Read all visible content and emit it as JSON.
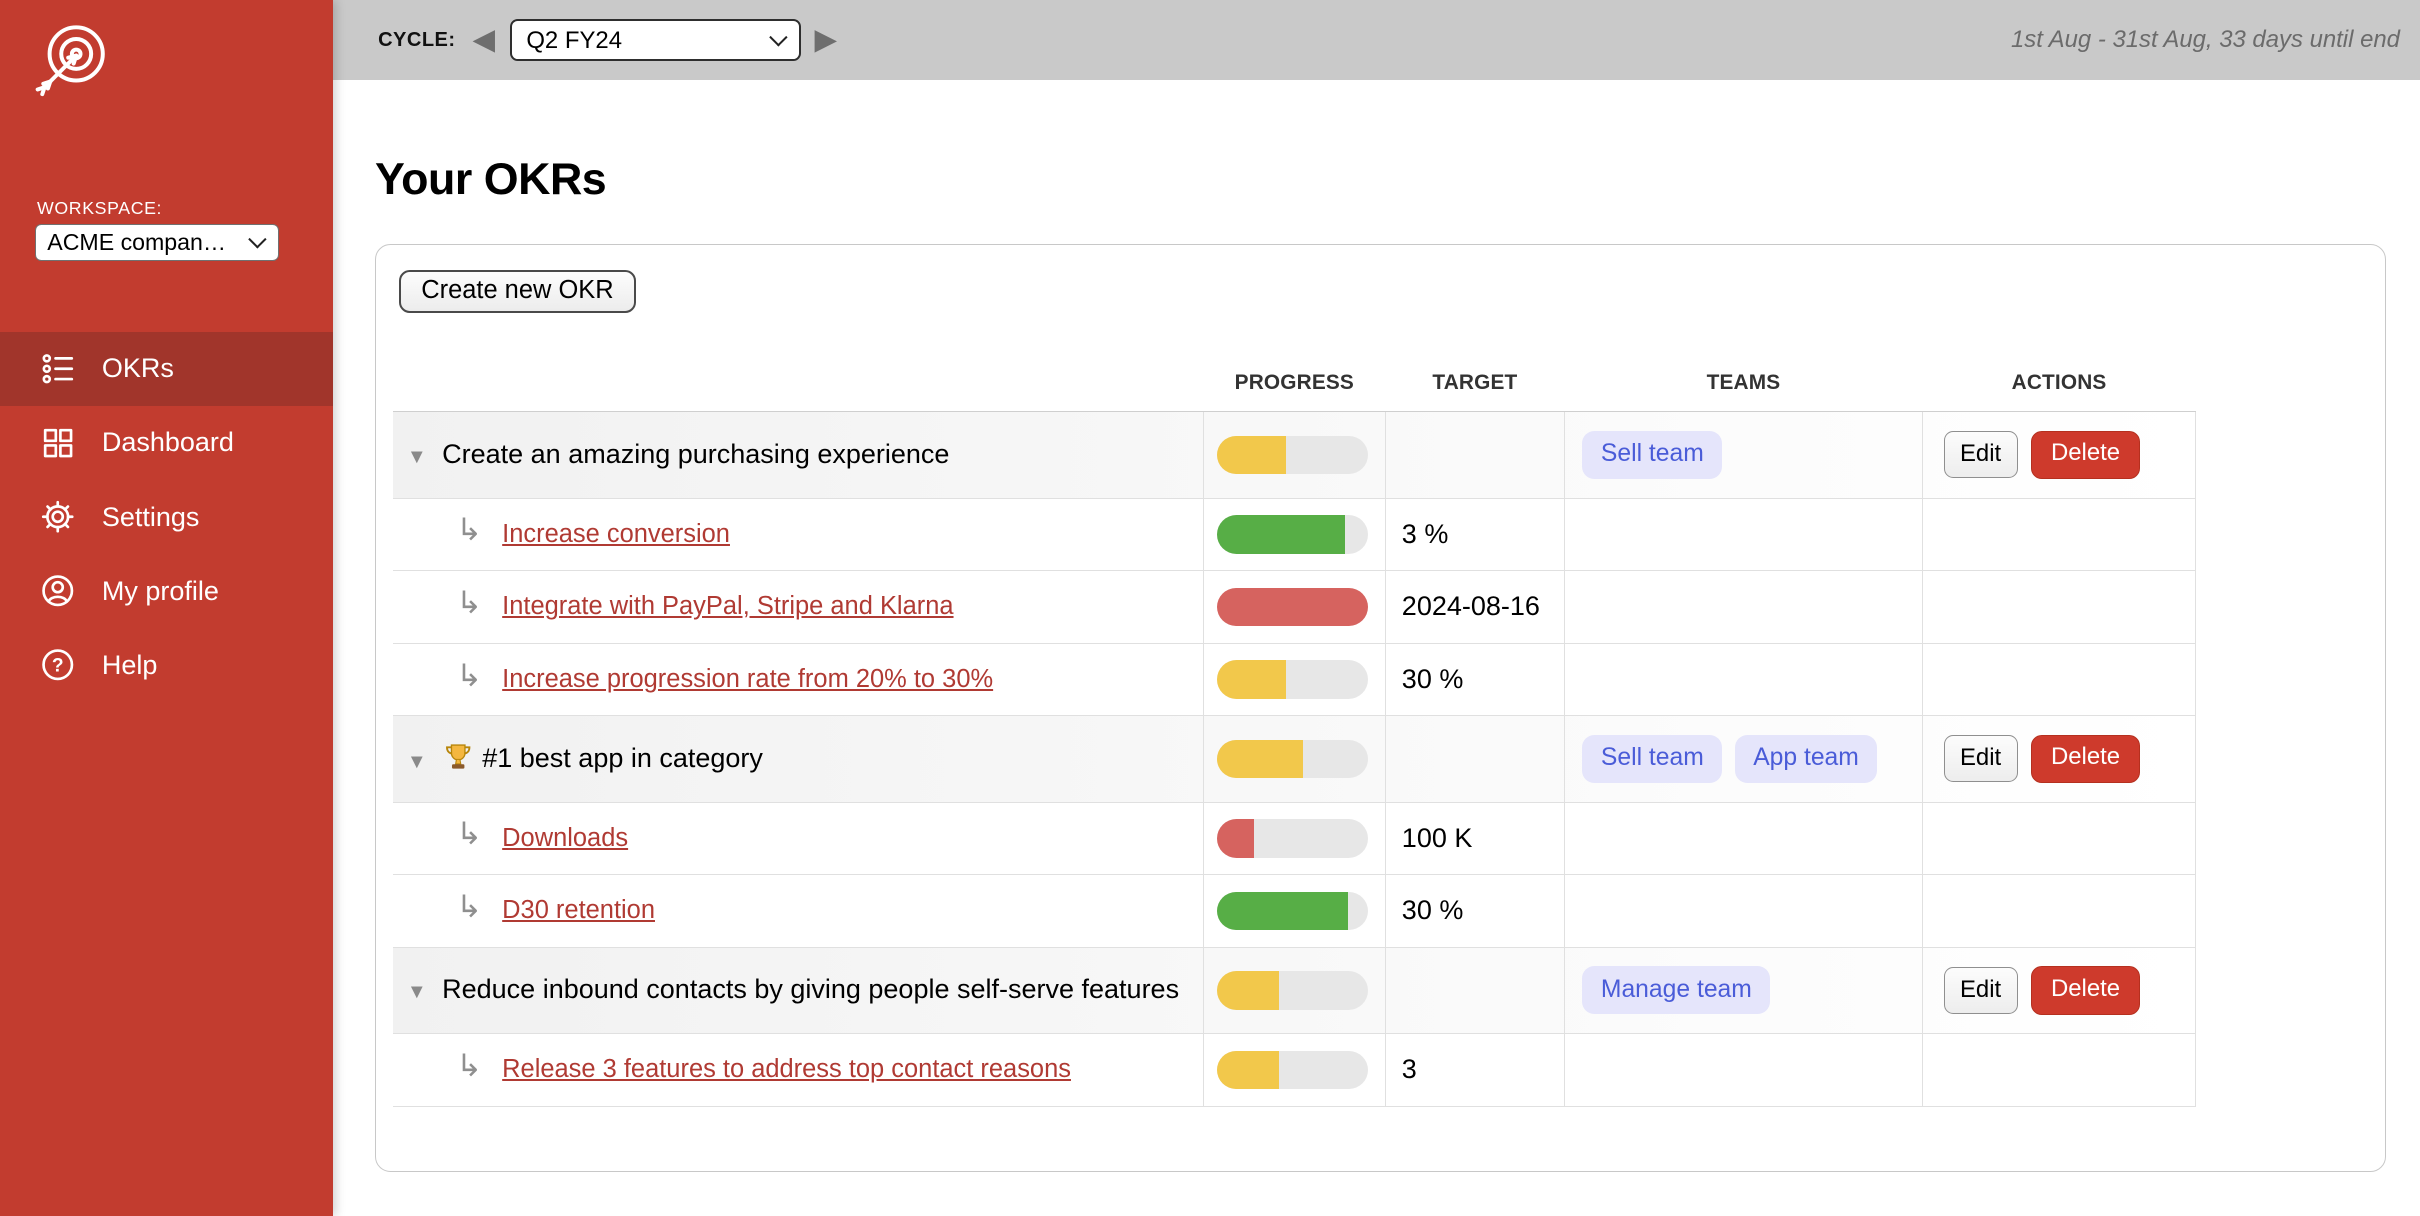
{
  "colors": {
    "sidebar_red": "#C23C2F",
    "sidebar_active": "#A1352B",
    "topbar_gray": "#C9C9C9",
    "link_red": "#B03A33",
    "badge_bg": "#E5E5FB",
    "badge_text": "#4A5CD8",
    "delete_red": "#CE3A2C",
    "progress_track": "#E7E7E7",
    "progress_yellow": "#F2C84B",
    "progress_green": "#57AE46",
    "progress_red": "#D6635F"
  },
  "topbar": {
    "cycle_label": "CYCLE:",
    "cycle_value": "Q2 FY24",
    "prev_icon": "◀",
    "next_icon": "▶",
    "period_info": "1st Aug - 31st Aug, 33 days until end"
  },
  "sidebar": {
    "workspace_label": "WORKSPACE:",
    "workspace_value": "ACME compan…",
    "items": [
      {
        "label": "OKRs",
        "icon": "okr-list-icon",
        "active": true
      },
      {
        "label": "Dashboard",
        "icon": "dashboard-grid-icon",
        "active": false
      },
      {
        "label": "Settings",
        "icon": "settings-gear-icon",
        "active": false
      },
      {
        "label": "My profile",
        "icon": "profile-user-icon",
        "active": false
      },
      {
        "label": "Help",
        "icon": "help-question-icon",
        "active": false
      }
    ]
  },
  "main": {
    "title": "Your OKRs",
    "create_button_label": "Create new OKR",
    "table": {
      "headers": [
        "PROGRESS",
        "TARGET",
        "TEAMS",
        "ACTIONS"
      ],
      "action_labels": {
        "edit": "Edit",
        "delete": "Delete"
      },
      "rows": [
        {
          "type": "objective",
          "title": "Create an amazing purchasing experience",
          "icon": "",
          "progress": {
            "percent": 46,
            "color": "yellow"
          },
          "target": "",
          "teams": [
            "Sell team"
          ]
        },
        {
          "type": "kr",
          "title": "Increase conversion",
          "progress": {
            "percent": 85,
            "color": "green"
          },
          "target": "3 %",
          "teams": []
        },
        {
          "type": "kr",
          "title": "Integrate with PayPal, Stripe and Klarna",
          "progress": {
            "percent": 100,
            "color": "red"
          },
          "target": "2024-08-16",
          "teams": []
        },
        {
          "type": "kr",
          "title": "Increase progression rate from 20% to 30%",
          "progress": {
            "percent": 46,
            "color": "yellow"
          },
          "target": "30 %",
          "teams": []
        },
        {
          "type": "objective",
          "title": "#1 best app in category",
          "icon": "trophy-icon",
          "progress": {
            "percent": 57,
            "color": "yellow"
          },
          "target": "",
          "teams": [
            "Sell team",
            "App team"
          ]
        },
        {
          "type": "kr",
          "title": "Downloads",
          "progress": {
            "percent": 25,
            "color": "red"
          },
          "target": "100 K",
          "teams": []
        },
        {
          "type": "kr",
          "title": "D30 retention",
          "progress": {
            "percent": 87,
            "color": "green"
          },
          "target": "30 %",
          "teams": []
        },
        {
          "type": "objective",
          "title": "Reduce inbound contacts by giving people self-serve features",
          "icon": "",
          "progress": {
            "percent": 41,
            "color": "yellow"
          },
          "target": "",
          "teams": [
            "Manage team"
          ]
        },
        {
          "type": "kr",
          "title": "Release 3 features to address top contact reasons",
          "progress": {
            "percent": 41,
            "color": "yellow"
          },
          "target": "3",
          "teams": []
        }
      ]
    }
  }
}
